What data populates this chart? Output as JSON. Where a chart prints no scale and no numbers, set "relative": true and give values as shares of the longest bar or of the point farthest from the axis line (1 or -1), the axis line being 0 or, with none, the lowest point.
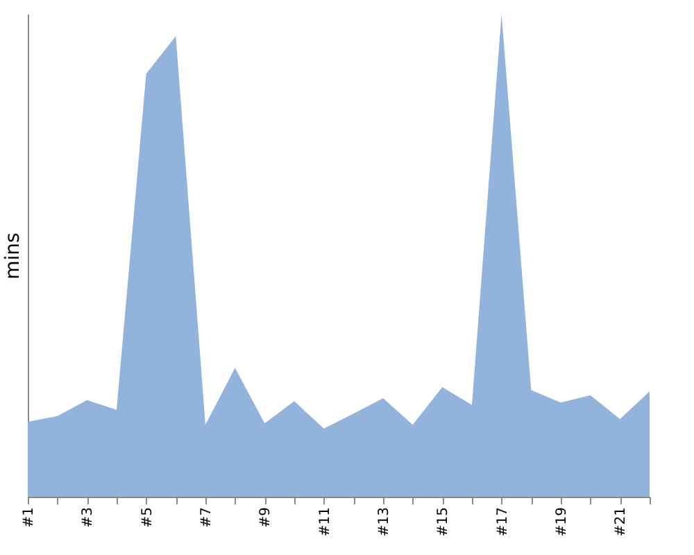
{
  "chart_data": {
    "type": "area",
    "ylabel": "mins",
    "relative": true,
    "categories": [
      "#1",
      null,
      "#3",
      null,
      "#5",
      null,
      "#7",
      null,
      "#9",
      null,
      "#11",
      null,
      "#13",
      null,
      "#15",
      null,
      "#17",
      null,
      "#19",
      null,
      "#21",
      null
    ],
    "series": [
      {
        "color": "#91b3dc",
        "values": [
          0.155,
          0.167,
          0.2,
          0.18,
          0.876,
          0.954,
          0.149,
          0.267,
          0.152,
          0.198,
          0.141,
          0.172,
          0.204,
          0.149,
          0.227,
          0.19,
          1,
          0.221,
          0.195,
          0.21,
          0.161,
          0.218
        ]
      }
    ]
  }
}
